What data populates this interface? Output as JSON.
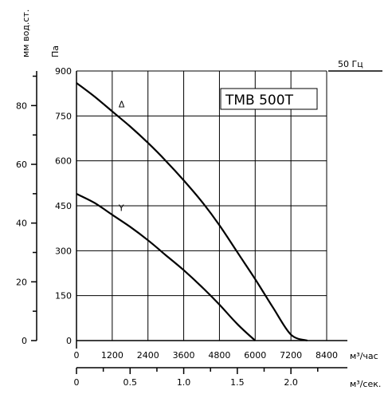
{
  "chart_data": {
    "type": "line",
    "title": "",
    "model_label": "TMB 500T",
    "frequency_label": "50 Гц",
    "x_axis": {
      "unit": "м³/час",
      "range": [
        0,
        8400
      ],
      "ticks": [
        0,
        1200,
        2400,
        3600,
        4800,
        6000,
        7200,
        8400
      ],
      "tick_labels": [
        "0",
        "1200",
        "2400",
        "3600",
        "4800",
        "6000",
        "7200",
        "8400"
      ]
    },
    "x_axis_secondary": {
      "unit": "м³/сек.",
      "tick_values": [
        0,
        0.5,
        1.0,
        1.5,
        2.0
      ],
      "tick_labels": [
        "0",
        "0.5",
        "1.0",
        "1.5",
        "2.0"
      ],
      "minor_tick_values": [
        0.25,
        0.75,
        1.25,
        1.75,
        2.25
      ]
    },
    "y_axis": {
      "unit": "Па",
      "range": [
        0,
        900
      ],
      "ticks": [
        0,
        150,
        300,
        450,
        600,
        750,
        900
      ],
      "tick_labels": [
        "0",
        "150",
        "300",
        "450",
        "600",
        "750",
        "900"
      ]
    },
    "y_axis_secondary": {
      "unit": "мм вод.ст.",
      "tick_values": [
        0,
        20,
        40,
        60,
        80
      ],
      "tick_labels": [
        "0",
        "20",
        "40",
        "60",
        "80"
      ],
      "minor_tick_values": [
        10,
        30,
        50,
        70,
        90
      ]
    },
    "grid": true,
    "series": [
      {
        "name": "Δ",
        "points": [
          [
            0,
            860
          ],
          [
            600,
            815
          ],
          [
            1200,
            765
          ],
          [
            1800,
            715
          ],
          [
            2400,
            660
          ],
          [
            3000,
            600
          ],
          [
            3600,
            535
          ],
          [
            4200,
            465
          ],
          [
            4800,
            385
          ],
          [
            5400,
            295
          ],
          [
            6000,
            205
          ],
          [
            6600,
            110
          ],
          [
            7200,
            20
          ],
          [
            7750,
            0
          ]
        ]
      },
      {
        "name": "Y",
        "points": [
          [
            0,
            490
          ],
          [
            600,
            460
          ],
          [
            1200,
            420
          ],
          [
            1800,
            380
          ],
          [
            2400,
            335
          ],
          [
            3000,
            285
          ],
          [
            3600,
            235
          ],
          [
            4200,
            180
          ],
          [
            4800,
            120
          ],
          [
            5400,
            55
          ],
          [
            6000,
            0
          ]
        ]
      }
    ]
  }
}
